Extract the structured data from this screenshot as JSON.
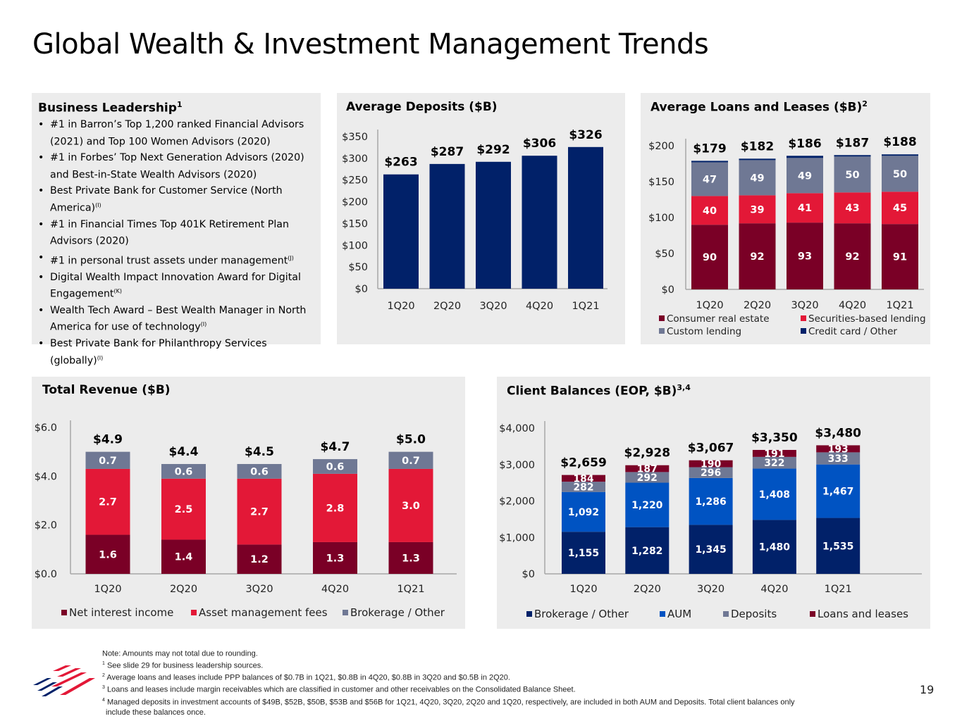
{
  "page": {
    "title": "Global Wealth & Investment Management Trends",
    "page_number": "19"
  },
  "leadership": {
    "title": "Business Leadership",
    "title_sup": "1",
    "items": [
      {
        "text": "#1 in Barron’s Top 1,200 ranked Financial Advisors (2021) and Top 100 Women Advisors (2020)",
        "sup": ""
      },
      {
        "text": "#1 in Forbes’ Top Next Generation Advisors (2020) and Best-in-State Wealth Advisors (2020)",
        "sup": ""
      },
      {
        "text": "Best Private Bank for Customer Service (North America)",
        "sup": "(I)"
      },
      {
        "text": "#1 in Financial Times Top 401K Retirement Plan Advisors (2020)",
        "sup": ""
      },
      {
        "text": "#1 in personal trust assets under management",
        "sup": "(J)"
      },
      {
        "text": "Digital Wealth Impact Innovation Award for Digital Engagement",
        "sup": "(K)"
      },
      {
        "text": "Wealth Tech Award – Best Wealth Manager in North America for use of technology",
        "sup": "(I)"
      },
      {
        "text": "Best Private Bank for Philanthropy Services (globally)",
        "sup": "(I)"
      }
    ]
  },
  "colors": {
    "navy": "#012169",
    "maroon": "#7a0026",
    "red": "#e31837",
    "gray": "#6f7894",
    "blue": "#0053c2",
    "panel_bg": "#ececec"
  },
  "chart_data": [
    {
      "id": "deposits",
      "type": "bar",
      "title": "Average Deposits ($B)",
      "categories": [
        "1Q20",
        "2Q20",
        "3Q20",
        "4Q20",
        "1Q21"
      ],
      "values": [
        263,
        287,
        292,
        306,
        326
      ],
      "data_labels": [
        "$263",
        "$287",
        "$292",
        "$306",
        "$326"
      ],
      "yticks": [
        "$0",
        "$50",
        "$100",
        "$150",
        "$200",
        "$250",
        "$300",
        "$350"
      ],
      "ylim": [
        0,
        350
      ],
      "color": "#012169",
      "grid": false
    },
    {
      "id": "loans",
      "type": "bar",
      "stacked": true,
      "title": "Average Loans and Leases ($B)",
      "title_sup": "2",
      "categories": [
        "1Q20",
        "2Q20",
        "3Q20",
        "4Q20",
        "1Q21"
      ],
      "series": [
        {
          "name": "Consumer real estate",
          "values": [
            90,
            92,
            93,
            92,
            91
          ],
          "color": "#7a0026"
        },
        {
          "name": "Securities-based lending",
          "values": [
            40,
            39,
            41,
            43,
            45
          ],
          "color": "#e31837"
        },
        {
          "name": "Custom lending",
          "values": [
            47,
            49,
            49,
            50,
            50
          ],
          "color": "#6f7894"
        },
        {
          "name": "Credit card / Other",
          "values": [
            2,
            2,
            3,
            2,
            2
          ],
          "color": "#012169",
          "show_labels": false
        }
      ],
      "totals": [
        "$179",
        "$182",
        "$186",
        "$187",
        "$188"
      ],
      "yticks": [
        "$0",
        "$50",
        "$100",
        "$150",
        "$200"
      ],
      "ylim": [
        0,
        200
      ],
      "legend": [
        "Consumer real estate",
        "Securities-based lending",
        "Custom lending",
        "Credit card / Other"
      ],
      "legend_placement": "bottom",
      "grid": false
    },
    {
      "id": "revenue",
      "type": "bar",
      "stacked": true,
      "title": "Total Revenue ($B)",
      "categories": [
        "1Q20",
        "2Q20",
        "3Q20",
        "4Q20",
        "1Q21"
      ],
      "series": [
        {
          "name": "Net interest income",
          "values": [
            1.6,
            1.4,
            1.2,
            1.3,
            1.3
          ],
          "labels": [
            "1.6",
            "1.4",
            "1.2",
            "1.3",
            "1.3"
          ],
          "color": "#7a0026"
        },
        {
          "name": "Asset management fees",
          "values": [
            2.7,
            2.5,
            2.7,
            2.8,
            3.0
          ],
          "labels": [
            "2.7",
            "2.5",
            "2.7",
            "2.8",
            "3.0"
          ],
          "color": "#e31837"
        },
        {
          "name": "Brokerage / Other",
          "values": [
            0.7,
            0.6,
            0.6,
            0.6,
            0.7
          ],
          "labels": [
            "0.7",
            "0.6",
            "0.6",
            "0.6",
            "0.7"
          ],
          "color": "#6f7894"
        }
      ],
      "totals": [
        "$4.9",
        "$4.4",
        "$4.5",
        "$4.7",
        "$5.0"
      ],
      "yticks": [
        "$0.0",
        "$2.0",
        "$4.0",
        "$6.0"
      ],
      "ylim": [
        0,
        6
      ],
      "legend": [
        "Net interest income",
        "Asset management fees",
        "Brokerage / Other"
      ],
      "legend_placement": "bottom",
      "grid": false
    },
    {
      "id": "balances",
      "type": "bar",
      "stacked": true,
      "title": "Client Balances (EOP, $B)",
      "title_sup": "3,4",
      "categories": [
        "1Q20",
        "2Q20",
        "3Q20",
        "4Q20",
        "1Q21"
      ],
      "series": [
        {
          "name": "Brokerage / Other",
          "values": [
            1155,
            1282,
            1345,
            1480,
            1535
          ],
          "labels": [
            "1,155",
            "1,282",
            "1,345",
            "1,480",
            "1,535"
          ],
          "color": "#012169"
        },
        {
          "name": "AUM",
          "values": [
            1092,
            1220,
            1286,
            1408,
            1467
          ],
          "labels": [
            "1,092",
            "1,220",
            "1,286",
            "1,408",
            "1,467"
          ],
          "color": "#0053c2"
        },
        {
          "name": "Deposits",
          "values": [
            282,
            292,
            296,
            322,
            333
          ],
          "labels": [
            "282",
            "292",
            "296",
            "322",
            "333"
          ],
          "color": "#6f7894"
        },
        {
          "name": "Loans and leases",
          "values": [
            184,
            187,
            190,
            191,
            193
          ],
          "labels": [
            "184",
            "187",
            "190",
            "191",
            "193"
          ],
          "color": "#7a0026"
        }
      ],
      "totals": [
        "$2,659",
        "$2,928",
        "$3,067",
        "$3,350",
        "$3,480"
      ],
      "yticks": [
        "$0",
        "$1,000",
        "$2,000",
        "$3,000",
        "$4,000"
      ],
      "ylim": [
        0,
        4000
      ],
      "legend": [
        "Brokerage / Other",
        "AUM",
        "Deposits",
        "Loans and leases"
      ],
      "legend_placement": "bottom",
      "grid": false
    }
  ],
  "footnotes": [
    {
      "sup": "",
      "text": "Note: Amounts may not total due to rounding."
    },
    {
      "sup": "1",
      "text": "See slide 29 for business leadership sources."
    },
    {
      "sup": "2",
      "text": "Average loans and leases include PPP balances of $0.7B in 1Q21, $0.8B in 4Q20, $0.8B in 3Q20 and $0.5B in 2Q20."
    },
    {
      "sup": "3",
      "text": "Loans and leases include margin receivables which are classified in customer and other receivables on the Consolidated Balance Sheet."
    },
    {
      "sup": "4",
      "text": "Managed deposits in investment accounts of $49B, $52B, $50B, $53B and $56B for 1Q21, 4Q20, 3Q20, 2Q20 and 1Q20, respectively, are included in both AUM and Deposits. Total client balances only"
    },
    {
      "sup": "",
      "text": "include these balances once."
    }
  ]
}
